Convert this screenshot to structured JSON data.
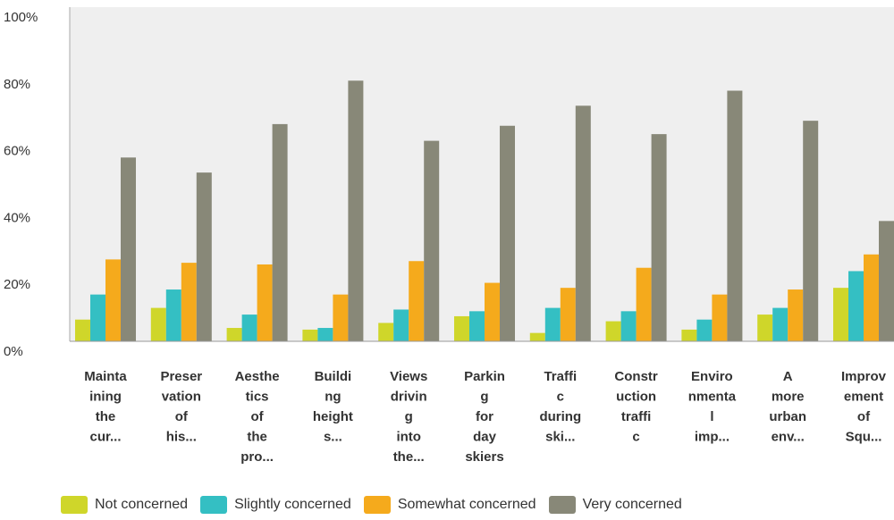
{
  "chart_data": {
    "type": "bar",
    "yticks": [
      "100%",
      "80%",
      "60%",
      "40%",
      "20%",
      "0%"
    ],
    "ylim": [
      0,
      100
    ],
    "grid": false,
    "legend_position": "bottom",
    "categories": [
      [
        "Mainta",
        "ining",
        "the",
        "cur..."
      ],
      [
        "Preser",
        "vation",
        "of",
        "his..."
      ],
      [
        "Aesthe",
        "tics",
        "of",
        "the",
        "pro..."
      ],
      [
        "Buildi",
        "ng",
        "height",
        "s..."
      ],
      [
        "Views",
        "drivin",
        "g",
        "into",
        "the..."
      ],
      [
        "Parkin",
        "g",
        "for",
        "day",
        "skiers"
      ],
      [
        "Traffi",
        "c",
        "during",
        "ski..."
      ],
      [
        "Constr",
        "uction",
        "traffi",
        "c"
      ],
      [
        "Enviro",
        "nmenta",
        "l",
        "imp..."
      ],
      [
        "A",
        "more",
        "urban",
        "env..."
      ],
      [
        "Improv",
        "ement",
        "of",
        "Squ..."
      ]
    ],
    "series": [
      {
        "name": "Not concerned",
        "color": "#cfd62a",
        "values": [
          6.5,
          10,
          4,
          3.5,
          5.5,
          7.5,
          2.5,
          6,
          3.5,
          8,
          16
        ]
      },
      {
        "name": "Slightly concerned",
        "color": "#34bfc3",
        "values": [
          14,
          15.5,
          8,
          4,
          9.5,
          9,
          10,
          9,
          6.5,
          10,
          21
        ]
      },
      {
        "name": "Somewhat concerned",
        "color": "#f5aa1c",
        "values": [
          24.5,
          23.5,
          23,
          14,
          24,
          17.5,
          16,
          22,
          14,
          15.5,
          26
        ]
      },
      {
        "name": "Very concerned",
        "color": "#888878",
        "values": [
          55,
          50.5,
          65,
          78,
          60,
          64.5,
          70.5,
          62,
          75,
          66,
          36
        ]
      }
    ]
  }
}
